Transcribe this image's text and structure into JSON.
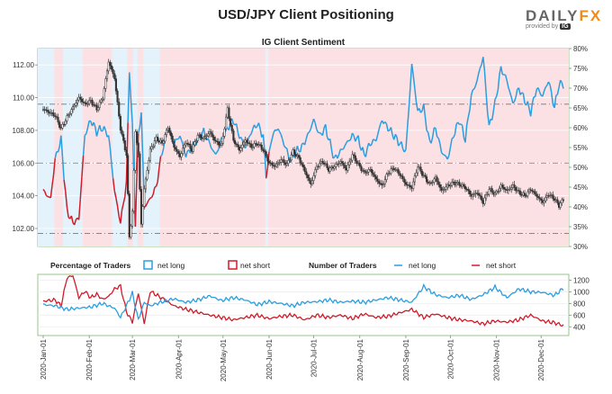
{
  "title": "USD/JPY Client Positioning",
  "brand": {
    "name_left": "DAILY",
    "name_right": "FX",
    "provided_by": "provided by",
    "ig": "IG"
  },
  "colors": {
    "net_long": "#2a9ee0",
    "net_short": "#d01c2a",
    "long_fill": "#e3f2fb",
    "short_fill": "#fbe1e4",
    "price": "#333333"
  },
  "chart_data": [
    {
      "type": "line",
      "title": "IG Client Sentiment",
      "left_axis": {
        "ticks": [
          "102.00",
          "104.00",
          "106.00",
          "108.00",
          "110.00",
          "112.00"
        ],
        "ylim": [
          100.9,
          113.0
        ]
      },
      "right_axis": {
        "ticks": [
          "30%",
          "35%",
          "40%",
          "45%",
          "50%",
          "55%",
          "60%",
          "65%",
          "70%",
          "75%",
          "80%"
        ],
        "ylim": [
          30,
          80
        ]
      },
      "reference_lines": [
        101.7,
        106.0,
        109.6
      ],
      "sentiment_pct_keypoints": {
        "x": [
          0,
          5,
          8,
          12,
          16,
          20,
          24,
          28,
          32,
          36,
          40,
          44,
          48,
          52,
          56,
          58,
          60,
          62,
          64,
          66,
          68,
          72,
          76,
          80,
          84,
          88,
          92,
          96,
          100,
          104,
          108,
          112,
          116,
          120,
          124,
          128,
          132,
          136,
          140,
          144,
          148,
          150,
          154,
          158,
          162,
          166,
          170,
          174,
          178,
          182,
          186,
          190,
          196,
          200,
          204,
          208,
          212,
          216,
          220,
          224,
          228,
          232,
          236,
          240,
          244,
          248,
          252,
          256,
          260,
          264,
          268,
          272,
          276,
          280,
          284,
          288,
          292,
          296,
          300,
          304,
          308,
          312,
          316,
          320,
          324,
          328,
          332,
          336,
          340,
          344,
          347,
          350
        ],
        "y": [
          44,
          42,
          52,
          57,
          39,
          36,
          37,
          58,
          62,
          59,
          60,
          58,
          44,
          36,
          46,
          75,
          60,
          36,
          58,
          64,
          40,
          42,
          45,
          54,
          60,
          56,
          58,
          53,
          55,
          57,
          59,
          56,
          53,
          57,
          60,
          62,
          58,
          55,
          59,
          61,
          58,
          48,
          58,
          60,
          56,
          52,
          54,
          55,
          58,
          62,
          58,
          60,
          52,
          54,
          56,
          58,
          57,
          53,
          56,
          57,
          62,
          60,
          58,
          56,
          54,
          76,
          64,
          65,
          56,
          60,
          54,
          52,
          58,
          62,
          57,
          68,
          72,
          78,
          60,
          66,
          75,
          72,
          66,
          70,
          67,
          64,
          70,
          68,
          72,
          65,
          71,
          71
        ]
      },
      "price_keypoints": {
        "x": [
          0,
          8,
          12,
          16,
          20,
          24,
          28,
          32,
          36,
          40,
          44,
          48,
          52,
          56,
          58,
          60,
          62,
          64,
          66,
          68,
          72,
          76,
          80,
          84,
          88,
          92,
          96,
          100,
          104,
          108,
          112,
          116,
          120,
          124,
          128,
          132,
          136,
          140,
          144,
          148,
          152,
          156,
          160,
          164,
          168,
          172,
          176,
          180,
          184,
          188,
          192,
          196,
          200,
          204,
          208,
          212,
          216,
          220,
          224,
          228,
          232,
          236,
          240,
          244,
          248,
          252,
          256,
          260,
          264,
          268,
          272,
          276,
          280,
          284,
          288,
          292,
          296,
          300,
          304,
          308,
          312,
          316,
          320,
          324,
          328,
          332,
          336,
          340,
          344,
          347,
          350
        ],
        "y": [
          109.3,
          108.9,
          108.1,
          108.8,
          109.4,
          110.0,
          109.6,
          109.8,
          109.3,
          110.0,
          112.2,
          111.2,
          108.1,
          106.5,
          101.5,
          103.0,
          108.0,
          106.5,
          102.3,
          104.4,
          106.8,
          107.5,
          107.2,
          108.2,
          107.0,
          106.4,
          107.3,
          106.8,
          107.7,
          107.5,
          107.9,
          107.3,
          107.1,
          109.3,
          107.4,
          106.8,
          107.4,
          107.0,
          107.2,
          106.8,
          106.0,
          105.8,
          106.2,
          105.9,
          106.7,
          106.3,
          105.5,
          104.7,
          105.8,
          106.1,
          105.6,
          105.8,
          106.1,
          105.6,
          106.5,
          105.9,
          105.4,
          105.6,
          105.0,
          104.6,
          105.4,
          105.7,
          105.3,
          104.7,
          104.5,
          105.8,
          105.2,
          104.7,
          105.1,
          104.3,
          104.6,
          104.8,
          104.7,
          104.5,
          104.0,
          104.2,
          103.6,
          104.4,
          104.1,
          104.6,
          104.3,
          104.6,
          104.2,
          104.0,
          104.4,
          104.0,
          103.6,
          104.1,
          103.8,
          103.4,
          103.8
        ]
      }
    },
    {
      "type": "line",
      "legend": {
        "pct_label": "Percentage of Traders",
        "pct_long": "net long",
        "pct_short": "net short",
        "num_label": "Number of Traders",
        "num_long": "net long",
        "num_short": "net short"
      },
      "right_axis": {
        "ticks": [
          "400",
          "600",
          "800",
          "1000",
          "1200"
        ],
        "ylim": [
          250,
          1300
        ]
      },
      "x_tick_labels": [
        "2020-Jan-01",
        "2020-Feb-01",
        "2020-Mar-01",
        "2020-Apr-01",
        "2020-May-01",
        "2020-Jun-01",
        "2020-Jul-01",
        "2020-Aug-01",
        "2020-Sep-01",
        "2020-Oct-01",
        "2020-Nov-01",
        "2020-Dec-01"
      ],
      "net_long_traders_keypoints": {
        "x": [
          0,
          8,
          16,
          24,
          32,
          40,
          48,
          52,
          56,
          60,
          64,
          68,
          72,
          80,
          88,
          96,
          104,
          112,
          120,
          128,
          136,
          144,
          152,
          160,
          168,
          176,
          184,
          192,
          200,
          208,
          216,
          224,
          232,
          240,
          248,
          256,
          264,
          272,
          280,
          288,
          296,
          304,
          312,
          320,
          328,
          336,
          344,
          350
        ],
        "y": [
          780,
          760,
          700,
          720,
          740,
          800,
          720,
          560,
          760,
          980,
          520,
          820,
          760,
          830,
          880,
          820,
          860,
          930,
          850,
          900,
          860,
          780,
          830,
          800,
          760,
          820,
          830,
          860,
          820,
          840,
          820,
          860,
          900,
          860,
          820,
          1090,
          950,
          900,
          940,
          870,
          950,
          1080,
          900,
          1050,
          1000,
          990,
          940,
          1060
        ]
      },
      "net_short_traders_keypoints": {
        "x": [
          0,
          8,
          12,
          16,
          20,
          24,
          28,
          32,
          36,
          40,
          44,
          48,
          52,
          56,
          60,
          64,
          68,
          72,
          80,
          88,
          96,
          104,
          112,
          120,
          128,
          136,
          144,
          152,
          160,
          168,
          176,
          184,
          192,
          200,
          208,
          216,
          224,
          232,
          240,
          248,
          256,
          264,
          272,
          280,
          288,
          296,
          304,
          312,
          320,
          328,
          336,
          344,
          350
        ],
        "y": [
          840,
          860,
          760,
          1240,
          1280,
          900,
          1010,
          900,
          960,
          870,
          920,
          1050,
          1100,
          660,
          480,
          980,
          460,
          1010,
          890,
          760,
          700,
          650,
          600,
          560,
          520,
          560,
          600,
          540,
          580,
          600,
          520,
          600,
          560,
          600,
          540,
          620,
          560,
          580,
          640,
          700,
          560,
          620,
          560,
          520,
          500,
          450,
          500,
          480,
          520,
          600,
          500,
          470,
          420
        ]
      }
    }
  ]
}
